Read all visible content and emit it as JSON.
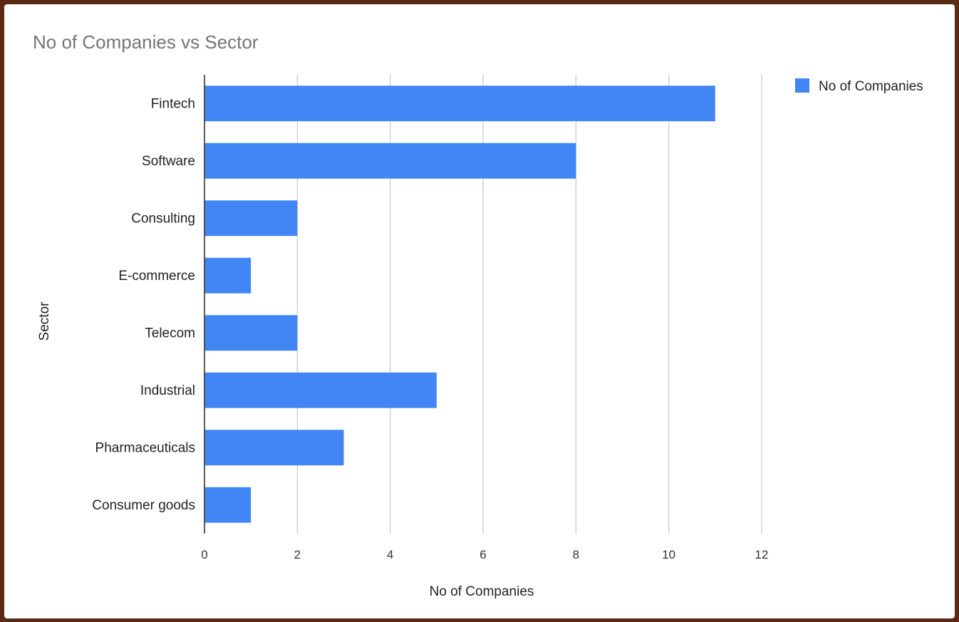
{
  "chart_data": {
    "type": "bar",
    "orientation": "horizontal",
    "title": "No of Companies  vs Sector",
    "xlabel": "No of Companies",
    "ylabel": "Sector",
    "categories": [
      "Fintech",
      "Software",
      "Consulting",
      "E-commerce",
      "Telecom",
      "Industrial",
      "Pharmaceuticals",
      "Consumer goods"
    ],
    "series": [
      {
        "name": "No of Companies",
        "values": [
          11,
          8,
          2,
          1,
          2,
          5,
          3,
          1
        ],
        "color": "#4285f4"
      }
    ],
    "xlim": [
      0,
      12
    ],
    "xticks": [
      "0",
      "2",
      "4",
      "6",
      "8",
      "10",
      "12"
    ],
    "grid": true,
    "legend": "top-right"
  }
}
